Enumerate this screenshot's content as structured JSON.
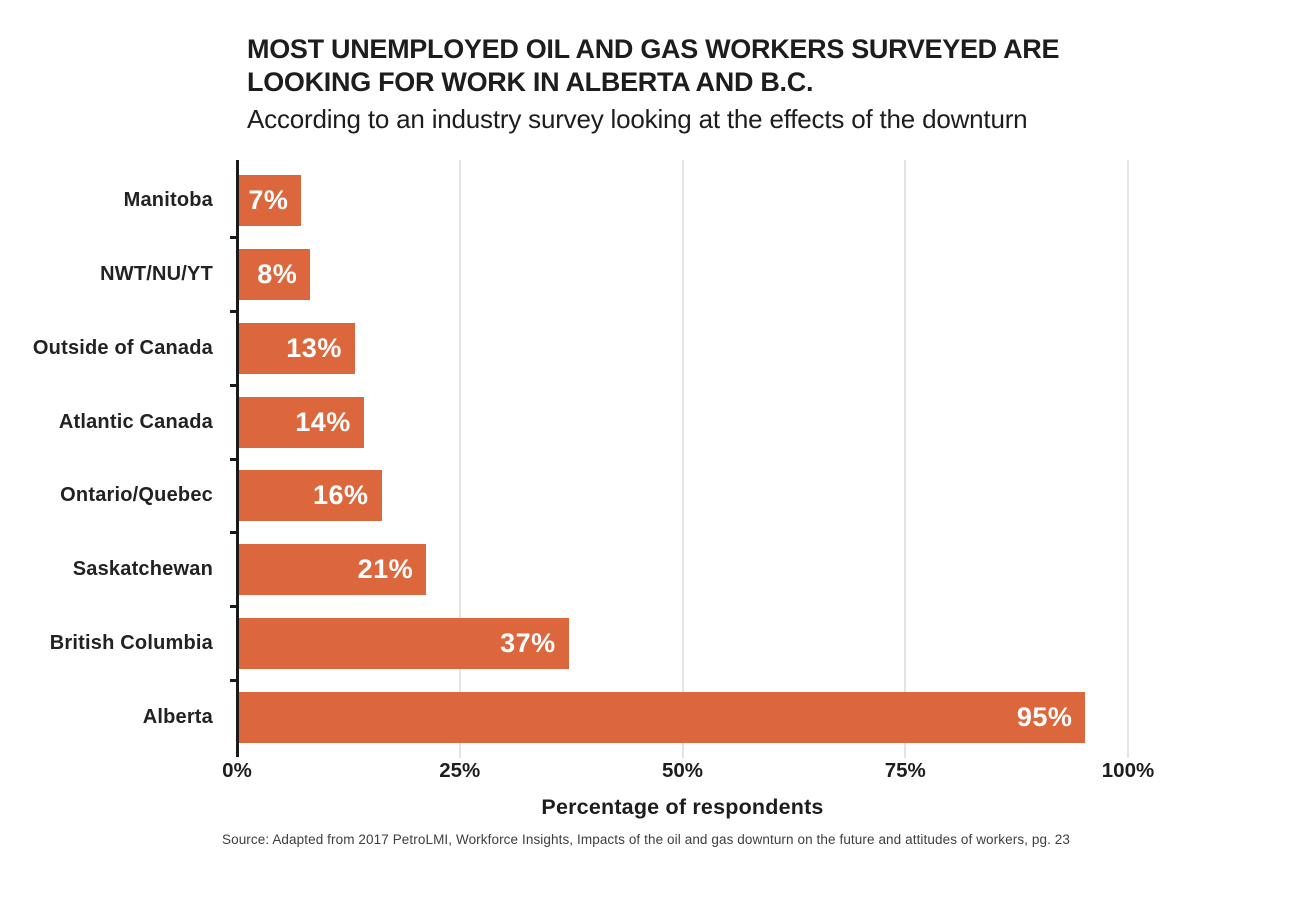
{
  "header": {
    "title_lines": [
      "MOST UNEMPLOYED OIL AND GAS WORKERS SURVEYED ARE",
      "LOOKING FOR WORK IN ALBERTA AND B.C."
    ],
    "subtitle": "According to an industry survey looking at the effects of the downturn"
  },
  "chart_data": {
    "type": "bar",
    "orientation": "horizontal",
    "title": "MOST UNEMPLOYED OIL AND GAS WORKERS SURVEYED ARE LOOKING FOR WORK IN ALBERTA AND B.C.",
    "subtitle": "According to an industry survey looking at the effects of the downturn",
    "categories": [
      "Manitoba",
      "NWT/NU/YT",
      "Outside of Canada",
      "Atlantic Canada",
      "Ontario/Quebec",
      "Saskatchewan",
      "British Columbia",
      "Alberta"
    ],
    "values": [
      7,
      8,
      13,
      14,
      16,
      21,
      37,
      95
    ],
    "value_labels": [
      "7%",
      "8%",
      "13%",
      "14%",
      "16%",
      "21%",
      "37%",
      "95%"
    ],
    "xlabel": "Percentage of respondents",
    "ylabel": "",
    "xlim": [
      0,
      100
    ],
    "x_ticks": [
      "0%",
      "25%",
      "50%",
      "75%",
      "100%"
    ],
    "x_tick_values": [
      0,
      25,
      50,
      75,
      100
    ],
    "grid": "vertical gridlines at 25% intervals",
    "legend": "none",
    "bar_color": "#DC673C",
    "value_label_color": "#FFFFFF",
    "gridline_color": "#E4E4E4",
    "axis_color": "#1A1A1A"
  },
  "footer": {
    "source": "Source: Adapted from 2017 PetroLMI, Workforce Insights, Impacts of the oil and gas downturn on the future and attitudes of workers, pg. 23"
  }
}
